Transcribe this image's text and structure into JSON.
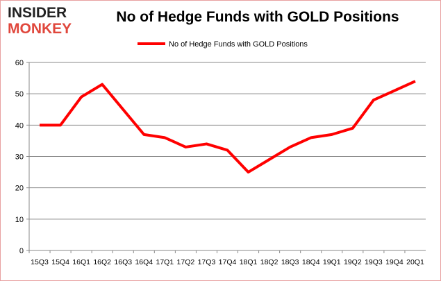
{
  "logo": {
    "line1": "INSIDER",
    "line2": "MONKEY"
  },
  "chart_data": {
    "type": "line",
    "title": "No of Hedge Funds with GOLD Positions",
    "categories": [
      "15Q3",
      "15Q4",
      "16Q1",
      "16Q2",
      "16Q3",
      "16Q4",
      "17Q1",
      "17Q2",
      "17Q3",
      "17Q4",
      "18Q1",
      "18Q2",
      "18Q3",
      "18Q4",
      "19Q1",
      "19Q2",
      "19Q3",
      "19Q4",
      "20Q1"
    ],
    "series": [
      {
        "name": "No of Hedge Funds with GOLD Positions",
        "color": "#ff0000",
        "values": [
          40,
          40,
          49,
          53,
          45,
          37,
          36,
          33,
          34,
          32,
          25,
          29,
          33,
          36,
          37,
          39,
          48,
          51,
          54
        ]
      }
    ],
    "ylim": [
      0,
      60
    ],
    "yticks": [
      0,
      10,
      20,
      30,
      40,
      50,
      60
    ],
    "grid": true,
    "legend": "top-center"
  }
}
